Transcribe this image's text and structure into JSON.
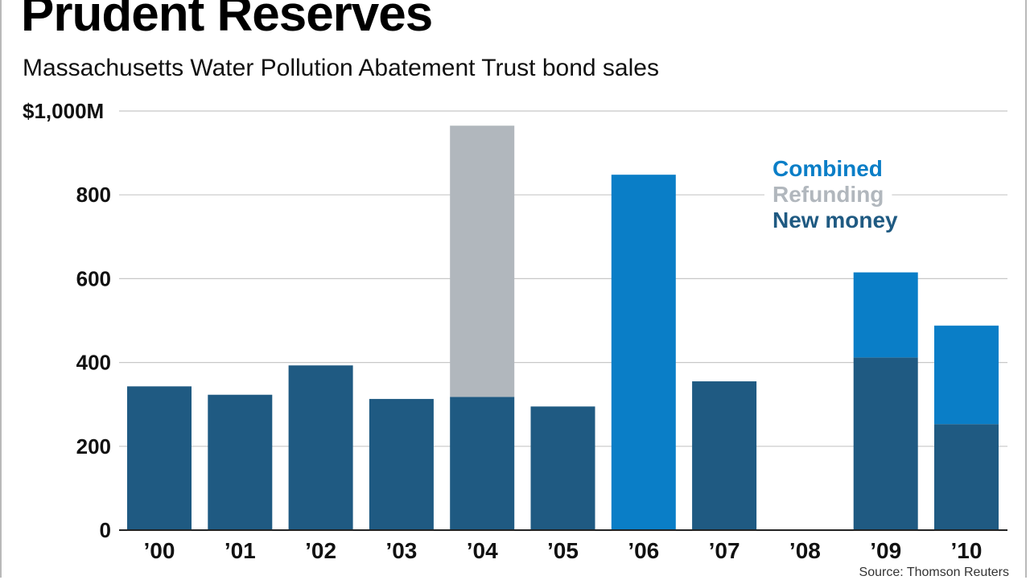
{
  "header": {
    "title": "Prudent Reserves",
    "subtitle": "Massachusetts Water Pollution Abatement Trust bond sales"
  },
  "footer": {
    "source": "Source: Thomson Reuters"
  },
  "colors": {
    "new_money": "#1f5a82",
    "refunding": "#b1b7bd",
    "combined": "#0a7ec7",
    "grid": "#c8c8c8",
    "axis": "#222222"
  },
  "chart_data": {
    "type": "bar",
    "stacked": true,
    "categories": [
      "’00",
      "’01",
      "’02",
      "’03",
      "’04",
      "’05",
      "’06",
      "’07",
      "’08",
      "’09",
      "’10"
    ],
    "series": [
      {
        "name": "New money",
        "color_key": "new_money",
        "values": [
          343,
          323,
          393,
          313,
          318,
          295,
          0,
          355,
          0,
          412,
          253
        ]
      },
      {
        "name": "Refunding",
        "color_key": "refunding",
        "values": [
          0,
          0,
          0,
          0,
          647,
          0,
          0,
          0,
          0,
          0,
          0
        ]
      },
      {
        "name": "Combined",
        "color_key": "combined",
        "values": [
          0,
          0,
          0,
          0,
          0,
          0,
          848,
          0,
          0,
          203,
          235
        ]
      }
    ],
    "ylim": [
      0,
      1000
    ],
    "yticks": [
      0,
      200,
      400,
      600,
      800,
      1000
    ],
    "ytick_labels": [
      "0",
      "200",
      "400",
      "600",
      "800",
      "$1,000M"
    ],
    "legend": {
      "placement": "top-right",
      "entries": [
        {
          "label": "Combined",
          "color_key": "combined"
        },
        {
          "label": "Refunding",
          "color_key": "refunding"
        },
        {
          "label": "New money",
          "color_key": "new_money"
        }
      ]
    },
    "grid": true,
    "xlabel": "",
    "ylabel": ""
  }
}
